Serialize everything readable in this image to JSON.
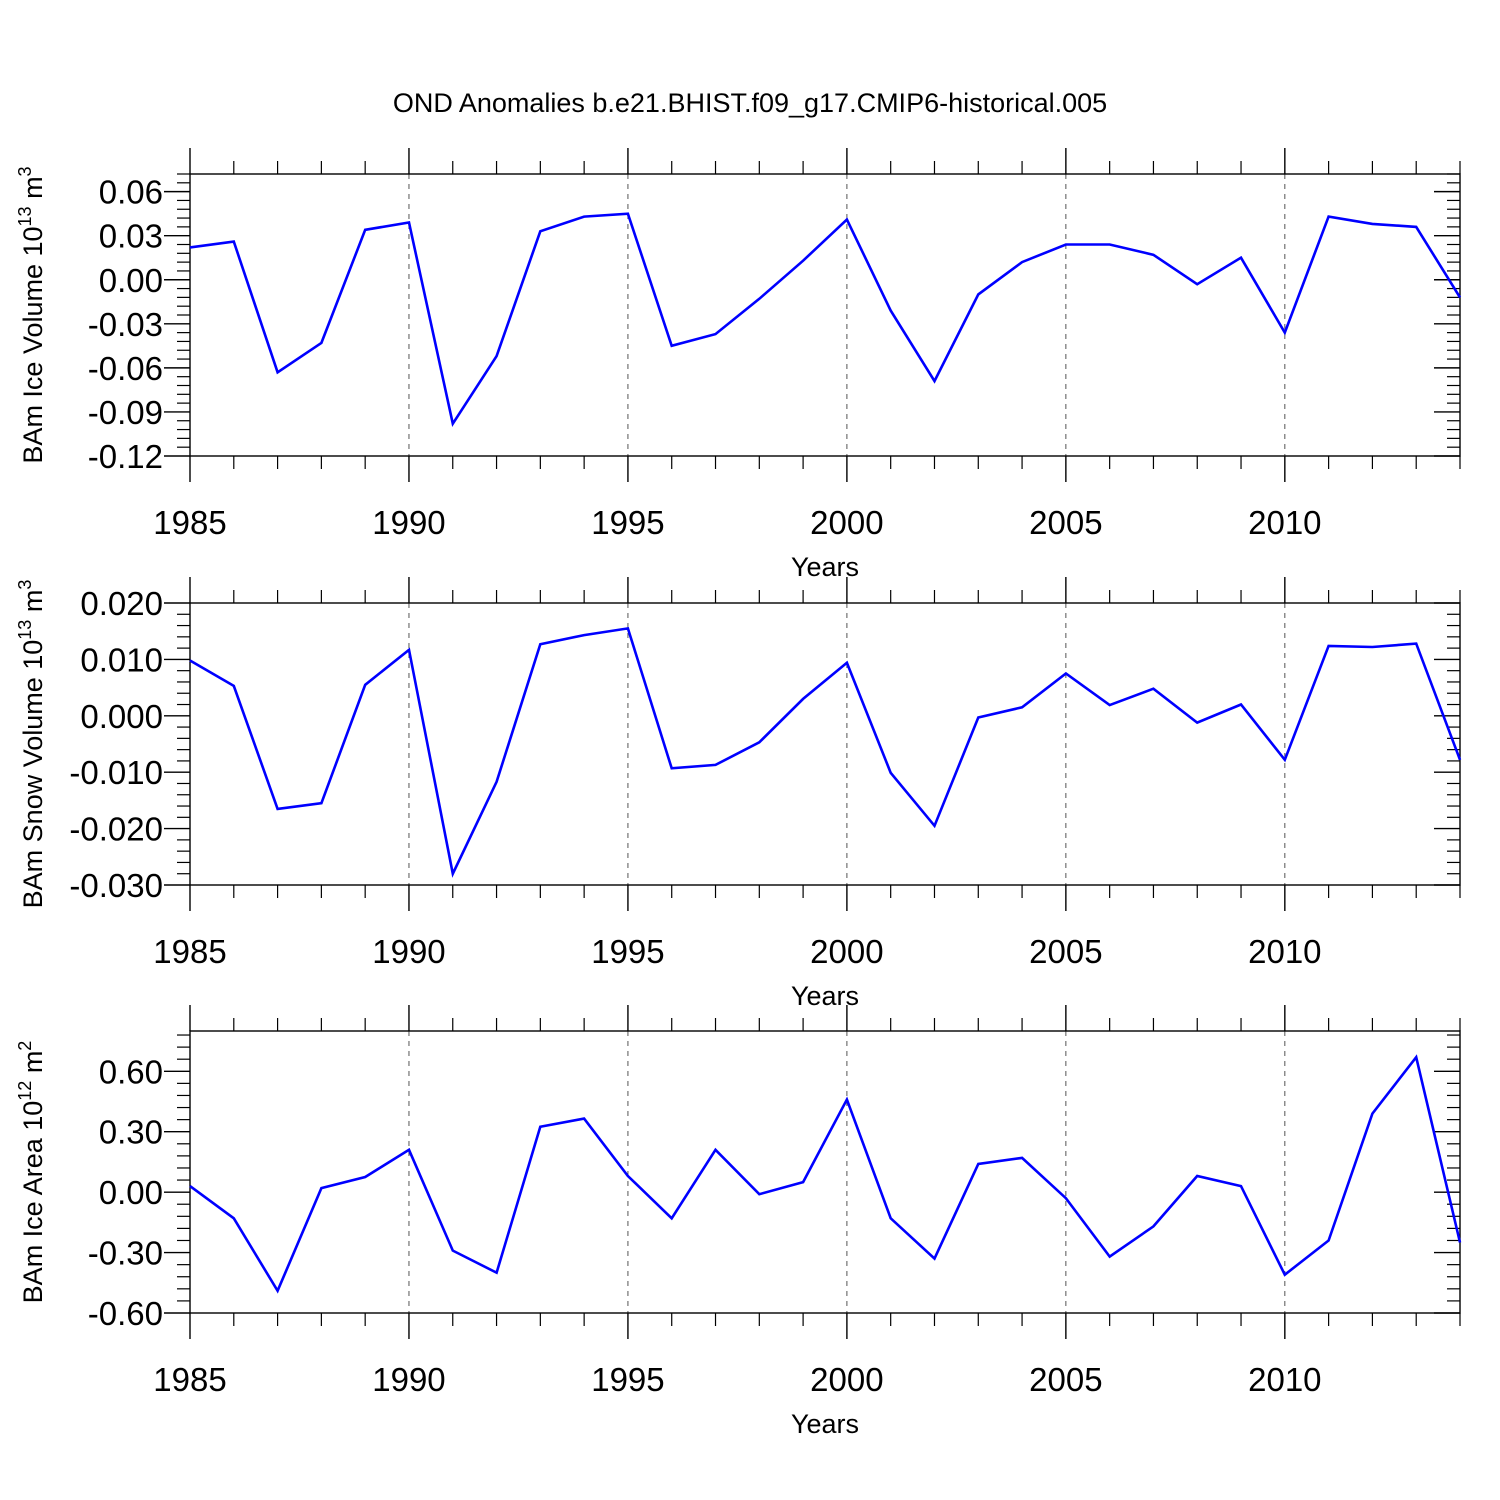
{
  "title": "OND Anomalies b.e21.BHIST.f09_g17.CMIP6-historical.005",
  "colors": {
    "series": "#0000ff",
    "axis": "#000000",
    "grid": "#555555"
  },
  "chart_data": [
    {
      "type": "line",
      "xlabel": "Years",
      "ylabel": {
        "main": "BAm Ice Volume 10",
        "exp": "13",
        "unit": " m",
        "unit_exp": "3"
      },
      "xlim": [
        1985,
        2014
      ],
      "ylim": [
        -0.12,
        0.072
      ],
      "xticks": [
        1985,
        1990,
        1995,
        2000,
        2005,
        2010
      ],
      "xtick_labels": [
        "1985",
        "1990",
        "1995",
        "2000",
        "2005",
        "2010"
      ],
      "yticks": [
        -0.12,
        -0.09,
        -0.06,
        -0.03,
        0.0,
        0.03,
        0.06
      ],
      "ytick_labels": [
        "-0.12",
        "-0.09",
        "-0.06",
        "-0.03",
        "0.00",
        "0.03",
        "0.06"
      ],
      "x": [
        1985,
        1986,
        1987,
        1988,
        1989,
        1990,
        1991,
        1992,
        1993,
        1994,
        1995,
        1996,
        1997,
        1998,
        1999,
        2000,
        2001,
        2002,
        2003,
        2004,
        2005,
        2006,
        2007,
        2008,
        2009,
        2010,
        2011,
        2012,
        2013,
        2014
      ],
      "values": [
        0.022,
        0.026,
        -0.063,
        -0.043,
        0.034,
        0.039,
        -0.098,
        -0.052,
        0.033,
        0.043,
        0.045,
        -0.045,
        -0.037,
        -0.013,
        0.013,
        0.041,
        -0.021,
        -0.069,
        -0.01,
        0.012,
        0.024,
        0.024,
        0.017,
        -0.003,
        0.015,
        -0.036,
        0.043,
        0.038,
        0.036,
        -0.012
      ]
    },
    {
      "type": "line",
      "xlabel": "Years",
      "ylabel": {
        "main": "BAm Snow Volume 10",
        "exp": "13",
        "unit": " m",
        "unit_exp": "3"
      },
      "xlim": [
        1985,
        2014
      ],
      "ylim": [
        -0.03,
        0.02
      ],
      "xticks": [
        1985,
        1990,
        1995,
        2000,
        2005,
        2010
      ],
      "xtick_labels": [
        "1985",
        "1990",
        "1995",
        "2000",
        "2005",
        "2010"
      ],
      "yticks": [
        -0.03,
        -0.02,
        -0.01,
        0.0,
        0.01,
        0.02
      ],
      "ytick_labels": [
        "-0.030",
        "-0.020",
        "-0.010",
        "0.000",
        "0.010",
        "0.020"
      ],
      "x": [
        1985,
        1986,
        1987,
        1988,
        1989,
        1990,
        1991,
        1992,
        1993,
        1994,
        1995,
        1996,
        1997,
        1998,
        1999,
        2000,
        2001,
        2002,
        2003,
        2004,
        2005,
        2006,
        2007,
        2008,
        2009,
        2010,
        2011,
        2012,
        2013,
        2014
      ],
      "values": [
        0.0098,
        0.0053,
        -0.0165,
        -0.0155,
        0.0055,
        0.0117,
        -0.028,
        -0.0117,
        0.0127,
        0.0143,
        0.0155,
        -0.0093,
        -0.0087,
        -0.0047,
        0.003,
        0.0094,
        -0.0101,
        -0.0195,
        -0.0003,
        0.0015,
        0.0075,
        0.0019,
        0.0048,
        -0.0012,
        0.002,
        -0.0078,
        0.0124,
        0.0122,
        0.0128,
        -0.0078
      ]
    },
    {
      "type": "line",
      "xlabel": "Years",
      "ylabel": {
        "main": "BAm Ice Area 10",
        "exp": "12",
        "unit": " m",
        "unit_exp": "2"
      },
      "xlim": [
        1985,
        2014
      ],
      "ylim": [
        -0.6,
        0.8
      ],
      "xticks": [
        1985,
        1990,
        1995,
        2000,
        2005,
        2010
      ],
      "xtick_labels": [
        "1985",
        "1990",
        "1995",
        "2000",
        "2005",
        "2010"
      ],
      "yticks": [
        -0.6,
        -0.3,
        0.0,
        0.3,
        0.6
      ],
      "ytick_labels": [
        "-0.60",
        "-0.30",
        "0.00",
        "0.30",
        "0.60"
      ],
      "x": [
        1985,
        1986,
        1987,
        1988,
        1989,
        1990,
        1991,
        1992,
        1993,
        1994,
        1995,
        1996,
        1997,
        1998,
        1999,
        2000,
        2001,
        2002,
        2003,
        2004,
        2005,
        2006,
        2007,
        2008,
        2009,
        2010,
        2011,
        2012,
        2013,
        2014
      ],
      "values": [
        0.03,
        -0.13,
        -0.49,
        0.02,
        0.075,
        0.21,
        -0.29,
        -0.4,
        0.325,
        0.365,
        0.08,
        -0.13,
        0.21,
        -0.01,
        0.05,
        0.46,
        -0.13,
        -0.33,
        0.14,
        0.17,
        -0.03,
        -0.32,
        -0.17,
        0.08,
        0.03,
        -0.41,
        -0.24,
        0.39,
        0.67,
        -0.25
      ]
    }
  ]
}
